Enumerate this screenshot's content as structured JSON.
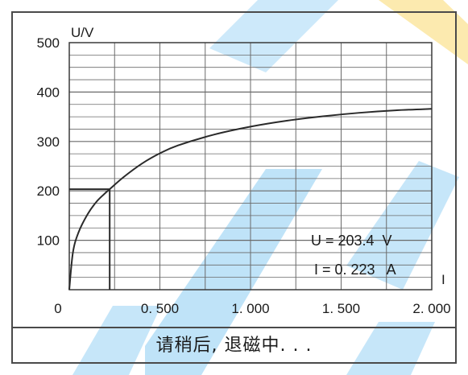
{
  "chart_data": {
    "type": "line",
    "title": "",
    "xlabel": "I",
    "ylabel": "U/V",
    "xlim": [
      0,
      2.0
    ],
    "ylim": [
      0,
      500
    ],
    "x_ticks": [
      {
        "value": 0,
        "label": "0"
      },
      {
        "value": 0.5,
        "label": "0. 500"
      },
      {
        "value": 1.0,
        "label": "1. 000"
      },
      {
        "value": 1.5,
        "label": "1. 500"
      },
      {
        "value": 2.0,
        "label": "2. 000"
      }
    ],
    "y_ticks": [
      {
        "value": 100,
        "label": "100"
      },
      {
        "value": 200,
        "label": "200"
      },
      {
        "value": 300,
        "label": "300"
      },
      {
        "value": 400,
        "label": "400"
      },
      {
        "value": 500,
        "label": "500"
      }
    ],
    "grid": true,
    "series": [
      {
        "x": [
          0,
          0.02,
          0.05,
          0.1,
          0.15,
          0.2,
          0.223,
          0.3,
          0.4,
          0.5,
          0.6,
          0.8,
          1.0,
          1.2,
          1.4,
          1.6,
          1.8,
          2.0
        ],
        "y": [
          0,
          75,
          115,
          152,
          178,
          196,
          203.4,
          228,
          255,
          276,
          292,
          314,
          330,
          342,
          351,
          358,
          363,
          366
        ],
        "color": "#2a2a2a"
      }
    ],
    "marker": {
      "x": 0.223,
      "y": 203.4
    },
    "readout": {
      "u_label": "U = 203.4  V",
      "i_label": "I = 0. 223   A"
    }
  },
  "status": {
    "message": "请稍后, 退磁中. . ."
  },
  "colors": {
    "grid": "#6a6a6a",
    "curve": "#2a2a2a",
    "frame": "#4a4a4a",
    "watermark_blue": "#1a9be6",
    "watermark_yellow": "#f6c21a"
  }
}
